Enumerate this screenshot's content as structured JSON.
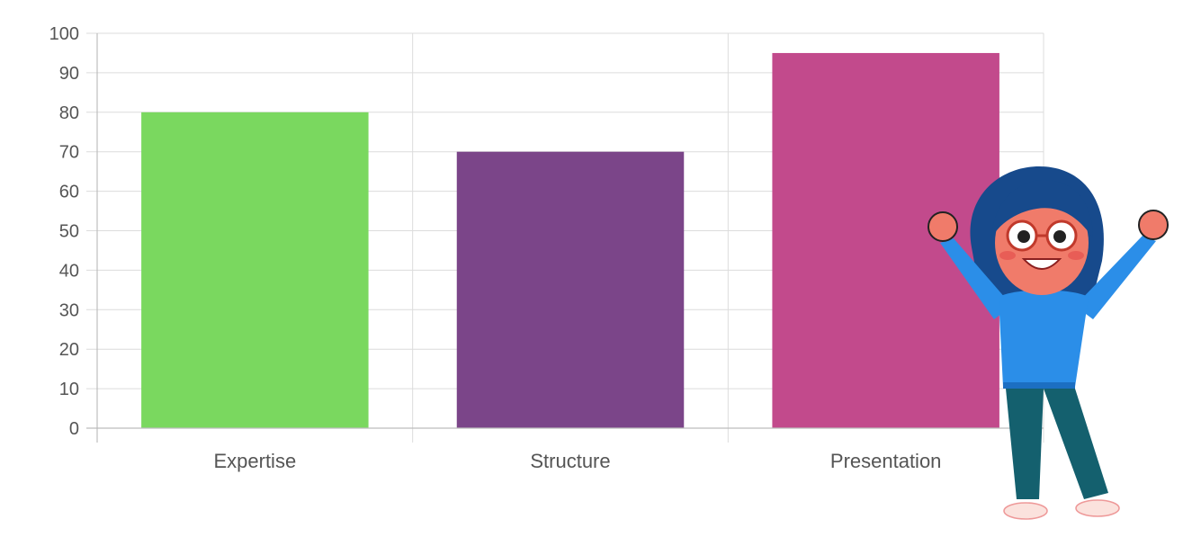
{
  "chart_data": {
    "type": "bar",
    "categories": [
      "Expertise",
      "Structure",
      "Presentation"
    ],
    "values": [
      80,
      70,
      95
    ],
    "colors": [
      "#7ad85f",
      "#7b4589",
      "#c24a8c"
    ],
    "ylim": [
      0,
      100
    ],
    "yticks": [
      "0",
      "10",
      "20",
      "30",
      "40",
      "50",
      "60",
      "70",
      "80",
      "90",
      "100"
    ],
    "grid": true,
    "legend": "none"
  },
  "illustration": {
    "icon": "cheering-girl-illustration"
  }
}
